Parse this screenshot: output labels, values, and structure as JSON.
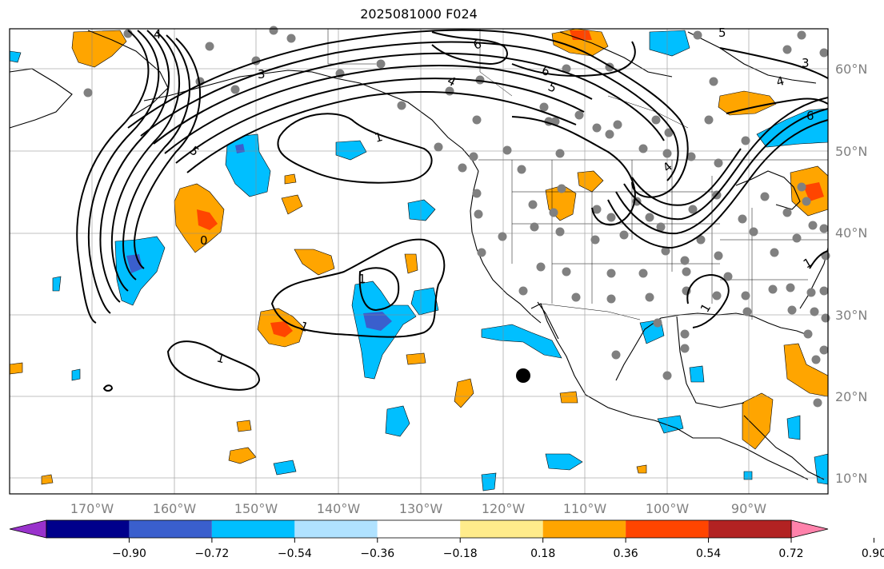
{
  "title": "2025081000 F024",
  "lon_labels": [
    "170°W",
    "160°W",
    "150°W",
    "140°W",
    "130°W",
    "120°W",
    "110°W",
    "100°W",
    "90°W"
  ],
  "lat_labels": [
    "60°N",
    "50°N",
    "40°N",
    "30°N",
    "20°N",
    "10°N"
  ],
  "contour_labels": [
    "6",
    "6",
    "5",
    "4",
    "3",
    "4",
    "5",
    "6",
    "5",
    "4",
    "1",
    "1",
    "0",
    "1",
    "1",
    "1",
    "1",
    "4",
    "3"
  ],
  "colorbar": {
    "ticks": [
      "−0.90",
      "−0.72",
      "−0.54",
      "−0.36",
      "−0.18",
      "0.18",
      "0.36",
      "0.54",
      "0.72",
      "0.90"
    ],
    "colors": [
      "#9932cc",
      "#00008b",
      "#3a5fcd",
      "#00bfff",
      "#b0e2ff",
      "#ffffff",
      "#ffec8b",
      "#ffa500",
      "#ff4500",
      "#b22222",
      "#ff82ab"
    ]
  },
  "colors": {
    "orange": "#ffa500",
    "red": "#ff4500",
    "cyan": "#00bfff",
    "blue": "#3a5fcd",
    "station": "#808080"
  }
}
